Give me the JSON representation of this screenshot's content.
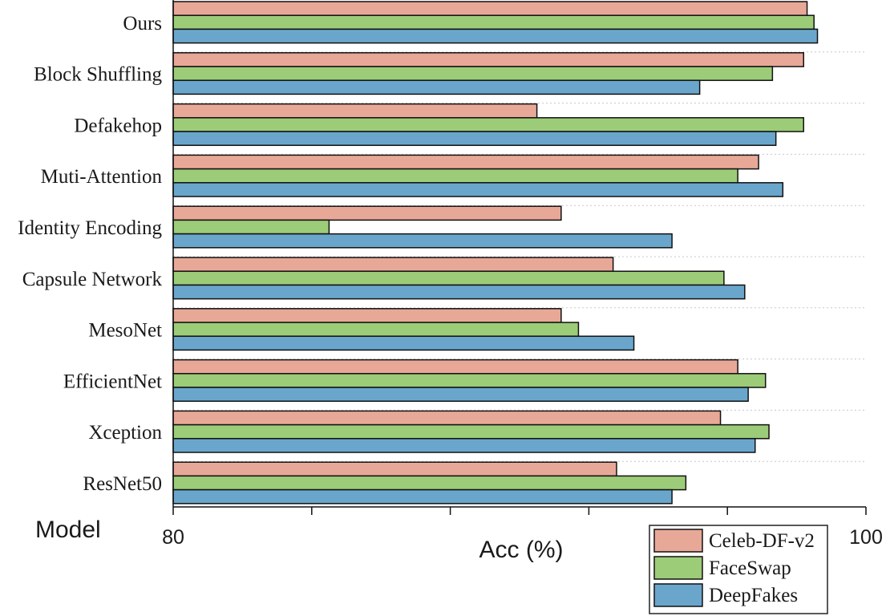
{
  "chart_data": {
    "type": "bar",
    "orientation": "horizontal",
    "categories": [
      "Ours",
      "Block Shuffling",
      "Defakehop",
      "Muti-Attention",
      "Identity Encoding",
      "Capsule Network",
      "MesoNet",
      "EfficientNet",
      "Xception",
      "ResNet50"
    ],
    "series": [
      {
        "name": "Celeb-DF-v2",
        "color": "#e8a898",
        "values": [
          98.3,
          98.2,
          90.5,
          96.9,
          91.2,
          92.7,
          91.2,
          96.3,
          95.8,
          92.8
        ]
      },
      {
        "name": "FaceSwap",
        "color": "#9ccc78",
        "values": [
          98.5,
          97.3,
          98.2,
          96.3,
          84.5,
          95.9,
          91.7,
          97.1,
          97.2,
          94.8
        ]
      },
      {
        "name": "DeepFakes",
        "color": "#6aa6cc",
        "values": [
          98.6,
          95.2,
          97.4,
          97.6,
          94.4,
          96.5,
          93.3,
          96.6,
          96.8,
          94.4
        ]
      }
    ],
    "xlabel": "Acc (%)",
    "ylabel": "Model",
    "xlim": [
      80,
      100
    ],
    "x_tick_labels": [
      "80",
      "100"
    ],
    "grid": "horizontal dashed between categories",
    "legend_position": "bottom-right"
  }
}
